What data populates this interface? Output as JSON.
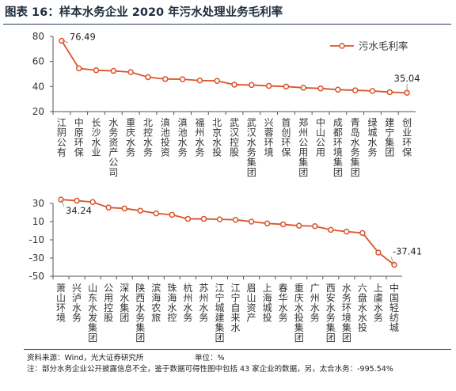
{
  "title": "图表 16：样本水务企业 2020 年污水处理业务毛利率",
  "source": "资料来源：Wind，光大证券研究所",
  "unit": "单位：%",
  "note": "注：部分水务企业公开披露信息不全，鉴于数据可得性图中包括 43 家企业的数据，另，太合水务：-995.54%",
  "colors": {
    "line": "#d9542b",
    "axis": "#555555",
    "text": "#333333"
  },
  "chart_data": [
    {
      "type": "line",
      "legend": "污水毛利率",
      "legend_position": "top-right",
      "ylim": [
        20,
        80
      ],
      "yticks": [
        20,
        40,
        60,
        80
      ],
      "grid": false,
      "categories": [
        "江阴公有",
        "中原环保",
        "长沙水业",
        "水务资产公司",
        "重庆水务",
        "北控水务",
        "滇池投资",
        "滇池水务",
        "福州水务",
        "北京水投",
        "武汉控股",
        "武汉水务集团",
        "兴蓉环境",
        "首创环保",
        "郑州公用集团",
        "中山公用",
        "成都环境集团",
        "青岛水务集团",
        "绿城水务",
        "建宁集团",
        "创业环保"
      ],
      "values": [
        76.49,
        54.5,
        53.0,
        52.5,
        51.5,
        47.5,
        46.0,
        45.8,
        44.8,
        44.5,
        41.5,
        41.2,
        40.5,
        40.0,
        39.0,
        38.5,
        37.5,
        37.0,
        36.5,
        35.5,
        35.04
      ],
      "data_labels": [
        {
          "index": 0,
          "text": "76.49"
        },
        {
          "index": 20,
          "text": "35.04"
        }
      ]
    },
    {
      "type": "line",
      "ylim": [
        -50,
        30
      ],
      "yticks": [
        -50,
        -30,
        -10,
        10,
        30
      ],
      "grid": false,
      "categories": [
        "萧山环境",
        "兴泸水务",
        "山东水发集团",
        "公用控股",
        "深水集团",
        "陕西水务集团",
        "滨海农旅",
        "珠海水控",
        "杭州水务",
        "苏州水务",
        "江宁城建集团",
        "江宁自来水",
        "眉山资产",
        "上海城投",
        "春华水务",
        "重庆水投集团",
        "广州水务",
        "西安水务集团",
        "水务环境集团",
        "六盘水水投",
        "上虞水务",
        "中国轻纺城"
      ],
      "values": [
        34.24,
        33.0,
        31.5,
        25.5,
        24.5,
        22.0,
        19.0,
        17.5,
        13.0,
        13.0,
        12.5,
        12.0,
        10.0,
        8.0,
        7.0,
        5.5,
        5.0,
        1.0,
        -1.0,
        -2.5,
        -24.0,
        -37.41
      ],
      "data_labels": [
        {
          "index": 0,
          "text": "34.24"
        },
        {
          "index": 21,
          "text": "-37.41"
        }
      ]
    }
  ]
}
